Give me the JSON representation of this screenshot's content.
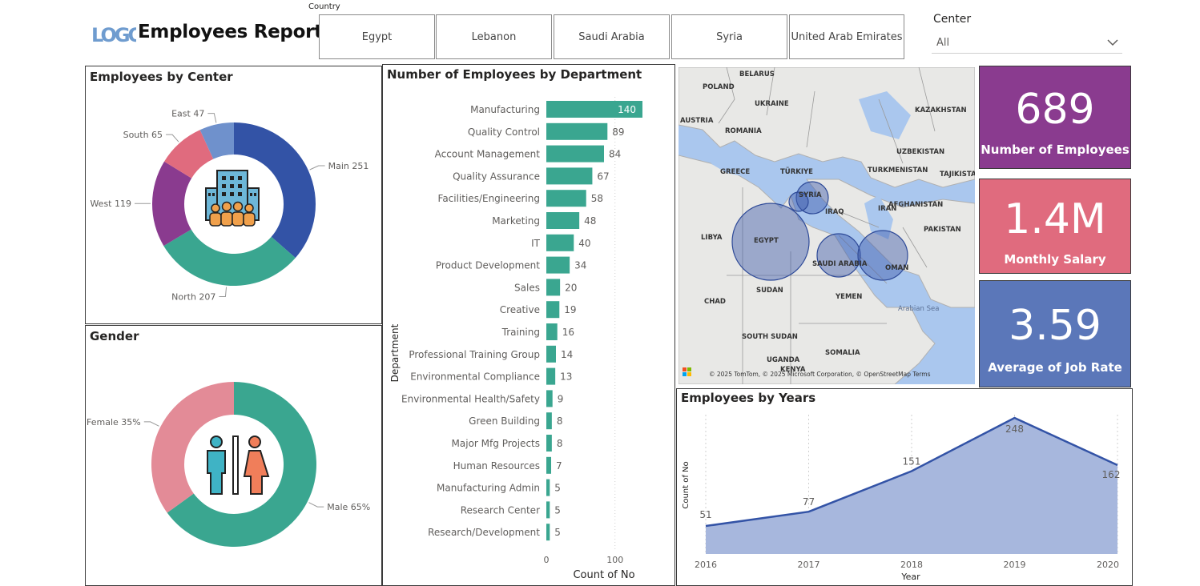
{
  "header": {
    "title": "Employees Report",
    "logo_text": "LOGO",
    "country_label": "Country",
    "countries": [
      "Egypt",
      "Lebanon",
      "Saudi Arabia",
      "Syria",
      "United Arab Emirates"
    ],
    "center_label": "Center",
    "center_value": "All"
  },
  "colors": {
    "teal": "#3aa690",
    "purple": "#8a3b8f",
    "pink": "#e06b7e",
    "blue": "#5b77b9",
    "navy": "#3353a6",
    "female": "#e38b97",
    "area": "#a7b7dd"
  },
  "kpis": [
    {
      "value": "689",
      "label": "Number of Employees",
      "color": "#8a3b8f"
    },
    {
      "value": "1.4M",
      "label": "Monthly Salary",
      "color": "#e06b7e"
    },
    {
      "value": "3.59",
      "label": "Average of Job Rate",
      "color": "#5b77b9"
    }
  ],
  "map": {
    "labels": [
      "BELARUS",
      "POLAND",
      "UKRAINE",
      "KAZAKHSTAN",
      "AUSTRIA",
      "ROMANIA",
      "UZBEKISTAN",
      "TURKMENISTAN",
      "TAJIKISTA",
      "GREECE",
      "TÜRKIYE",
      "SYRIA",
      "AFGHANISTAN",
      "IRAQ",
      "IRAN",
      "LIBYA",
      "EGYPT",
      "PAKISTAN",
      "SAUDI ARABIA",
      "OMAN",
      "SUDAN",
      "CHAD",
      "YEMEN",
      "Arabian Sea",
      "SOUTH SUDAN",
      "SOMALIA",
      "UGANDA",
      "KENYA"
    ],
    "attribution": "© 2025 TomTom, © 2025 Microsoft Corporation, © OpenStreetMap  Terms"
  },
  "chart_data": [
    {
      "type": "pie",
      "title": "Employees by Center",
      "categories": [
        "Main",
        "North",
        "West",
        "South",
        "East"
      ],
      "values": [
        251,
        207,
        119,
        65,
        47
      ],
      "data_labels": [
        "Main 251",
        "North 207",
        "West 119",
        "South 65",
        "East 47"
      ],
      "colors": [
        "#3353a6",
        "#3aa690",
        "#8a3b8f",
        "#e06b7e",
        "#6f91cc"
      ]
    },
    {
      "type": "pie",
      "title": "Gender",
      "categories": [
        "Male",
        "Female"
      ],
      "values": [
        65,
        35
      ],
      "data_labels": [
        "Male 65%",
        "Female 35%"
      ],
      "colors": [
        "#3aa690",
        "#e38b97"
      ]
    },
    {
      "type": "bar",
      "title": "Number of Employees by Department",
      "xlabel": "Count of No",
      "ylabel": "Department",
      "xlim": [
        0,
        140
      ],
      "x_ticks": [
        "0",
        "100"
      ],
      "categories": [
        "Manufacturing",
        "Quality Control",
        "Account Management",
        "Quality Assurance",
        "Facilities/Engineering",
        "Marketing",
        "IT",
        "Product Development",
        "Sales",
        "Creative",
        "Training",
        "Professional Training Group",
        "Environmental Compliance",
        "Environmental Health/Safety",
        "Green Building",
        "Major Mfg Projects",
        "Human Resources",
        "Manufacturing Admin",
        "Research Center",
        "Research/Development"
      ],
      "values": [
        140,
        89,
        84,
        67,
        58,
        48,
        40,
        34,
        20,
        19,
        16,
        14,
        13,
        9,
        8,
        8,
        7,
        5,
        5,
        5
      ]
    },
    {
      "type": "area",
      "title": "Employees by Years",
      "xlabel": "Year",
      "ylabel": "Count of No",
      "x": [
        "2016",
        "2017",
        "2018",
        "2019",
        "2020"
      ],
      "values": [
        51,
        77,
        151,
        248,
        162
      ]
    }
  ]
}
